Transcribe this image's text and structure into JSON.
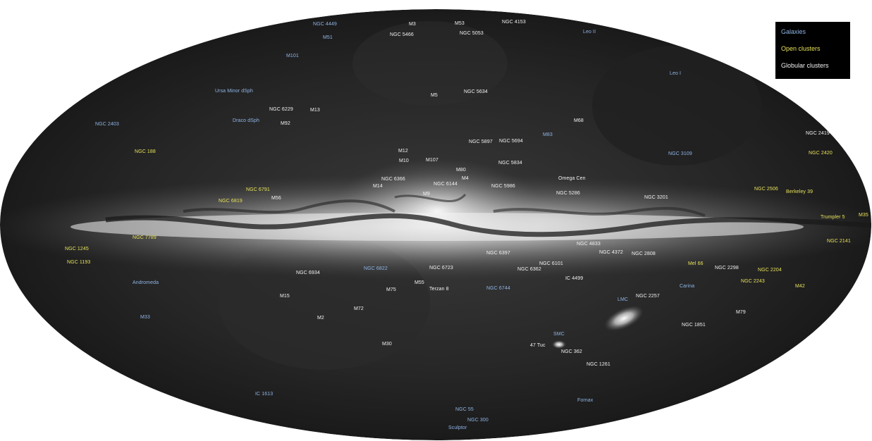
{
  "legend": {
    "galaxies": "Galaxies",
    "open_clusters": "Open clusters",
    "globular_clusters": "Globular clusters"
  },
  "colors": {
    "galaxies": "#8fb6e8",
    "open_clusters": "#e8e35a",
    "globular_clusters": "#f2f2f2",
    "sky_background": "#1e1e1e",
    "milky_way_band": "#e6e6e6"
  },
  "labels": {
    "ngc4449": "NGC 4449",
    "m51": "M51",
    "m3": "M3",
    "ngc5466": "NGC 5466",
    "m53": "M53",
    "ngc5053": "NGC 5053",
    "ngc4153": "NGC 4153",
    "leo2": "Leo II",
    "m101": "M101",
    "leo1": "Leo I",
    "ursa_minor": "Ursa Minor dSph",
    "m5": "M5",
    "ngc5634": "NGC 5634",
    "ngc6229": "NGC 6229",
    "m13": "M13",
    "ngc2403": "NGC 2403",
    "draco": "Draco dSph",
    "m92": "M92",
    "m68": "M68",
    "m83": "M83",
    "ngc2419": "NGC 2419",
    "ngc5897": "NGC 5897",
    "ngc5694": "NGC 5694",
    "ngc188": "NGC 188",
    "m12": "M12",
    "ngc3109": "NGC 3109",
    "ngc2420": "NGC 2420",
    "m10": "M10",
    "m107": "M107",
    "ngc5834": "NGC 5834",
    "m80": "M80",
    "ngc6366": "NGC 6366",
    "m4": "M4",
    "omega_cen": "Omega Cen",
    "m14": "M14",
    "ngc6144": "NGC 6144",
    "ngc5986": "NGC 5986",
    "ngc6791": "NGC 6791",
    "ngc5286": "NGC 5286",
    "ngc2506": "NGC 2506",
    "berkeley39": "Berkeley 39",
    "m56": "M56",
    "ngc6819": "NGC 6819",
    "m9": "M9",
    "ngc3201": "NGC 3201",
    "trumpler5": "Trumpler 5",
    "m35": "M35",
    "ngc7789": "NGC 7789",
    "ngc1245": "NGC 1245",
    "ngc2141": "NGC 2141",
    "ngc4833": "NGC 4833",
    "ngc6397": "NGC 6397",
    "ngc4372": "NGC 4372",
    "ngc2808": "NGC 2808",
    "ngc1193": "NGC 1193",
    "ngc6101": "NGC 6101",
    "mel66": "Mel 66",
    "ngc6822": "NGC 6822",
    "ngc6934": "NGC 6934",
    "ngc6723": "NGC 6723",
    "ngc6362": "NGC 6362",
    "ngc2298": "NGC 2298",
    "ngc2204": "NGC 2204",
    "ic4499": "IC 4499",
    "ngc2243": "NGC 2243",
    "andromeda": "Andromeda",
    "m55": "M55",
    "m75": "M75",
    "terzan8": "Terzan 8",
    "ngc6744": "NGC 6744",
    "carina": "Carina",
    "m42": "M42",
    "m15": "M15",
    "lmc": "LMC",
    "ngc2257": "NGC 2257",
    "m72": "M72",
    "m79": "M79",
    "m33": "M33",
    "m2": "M2",
    "ngc1851": "NGC 1851",
    "smc": "SMC",
    "m30": "M30",
    "tuc47": "47 Tuc",
    "ngc362": "NGC 362",
    "ngc1261": "NGC 1261",
    "ic1613": "IC 1613",
    "fornax": "Fornax",
    "ngc55": "NGC 55",
    "ngc300": "NGC 300",
    "sculptor": "Sculptor"
  }
}
